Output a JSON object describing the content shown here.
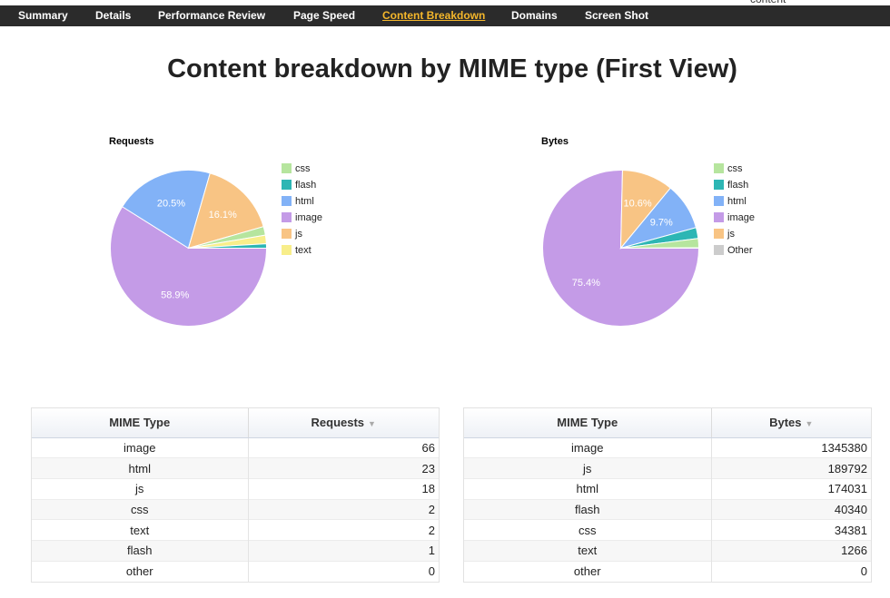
{
  "corner_text": "content",
  "nav": {
    "items": [
      {
        "label": "Summary",
        "active": false
      },
      {
        "label": "Details",
        "active": false
      },
      {
        "label": "Performance Review",
        "active": false
      },
      {
        "label": "Page Speed",
        "active": false
      },
      {
        "label": "Content Breakdown",
        "active": true
      },
      {
        "label": "Domains",
        "active": false
      },
      {
        "label": "Screen Shot",
        "active": false
      }
    ]
  },
  "page_title": "Content breakdown by MIME type (First View)",
  "colors": {
    "css": "#b6e59e",
    "flash": "#2db6b4",
    "html": "#82b2f7",
    "image": "#c49be7",
    "js": "#f8c484",
    "text": "#f8ee8a",
    "other": "#cccccc",
    "nav_bg": "#2b2b2b",
    "nav_active": "#f5b72b"
  },
  "chart_data": [
    {
      "type": "pie",
      "title": "Requests",
      "labels": [
        "image",
        "html",
        "js",
        "css",
        "text",
        "flash"
      ],
      "values": [
        66,
        23,
        18,
        2,
        2,
        1
      ],
      "slice_labels": [
        "58.9%",
        "20.5%",
        "16.1%",
        "",
        "",
        ""
      ],
      "legend": [
        "css",
        "flash",
        "html",
        "image",
        "js",
        "text"
      ],
      "legend_placement": "right"
    },
    {
      "type": "pie",
      "title": "Bytes",
      "labels": [
        "image",
        "js",
        "html",
        "flash",
        "css",
        "text"
      ],
      "values": [
        1345380,
        189792,
        174031,
        40340,
        34381,
        1266
      ],
      "slice_labels": [
        "75.4%",
        "10.6%",
        "9.7%",
        "",
        "",
        ""
      ],
      "legend": [
        "css",
        "flash",
        "html",
        "image",
        "js",
        "Other"
      ],
      "legend_placement": "right"
    }
  ],
  "requests_table": {
    "headers": [
      "MIME Type",
      "Requests"
    ],
    "sort_indicator": "▼",
    "rows": [
      {
        "mime": "image",
        "value": "66"
      },
      {
        "mime": "html",
        "value": "23"
      },
      {
        "mime": "js",
        "value": "18"
      },
      {
        "mime": "css",
        "value": "2"
      },
      {
        "mime": "text",
        "value": "2"
      },
      {
        "mime": "flash",
        "value": "1"
      },
      {
        "mime": "other",
        "value": "0"
      }
    ]
  },
  "bytes_table": {
    "headers": [
      "MIME Type",
      "Bytes"
    ],
    "sort_indicator": "▼",
    "rows": [
      {
        "mime": "image",
        "value": "1345380"
      },
      {
        "mime": "js",
        "value": "189792"
      },
      {
        "mime": "html",
        "value": "174031"
      },
      {
        "mime": "flash",
        "value": "40340"
      },
      {
        "mime": "css",
        "value": "34381"
      },
      {
        "mime": "text",
        "value": "1266"
      },
      {
        "mime": "other",
        "value": "0"
      }
    ]
  }
}
